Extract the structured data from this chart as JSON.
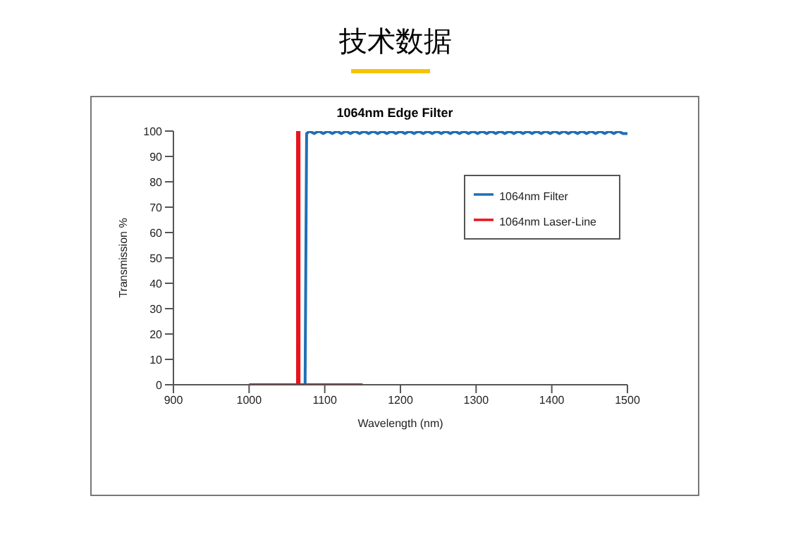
{
  "chart_data": {
    "type": "line",
    "title": "技术数据",
    "subtitle": "1064nm Edge Filter",
    "xlabel": "Wavelength (nm)",
    "ylabel": "Transmission %",
    "xlim": [
      900,
      1500
    ],
    "xticks": [
      900,
      1000,
      1100,
      1200,
      1300,
      1400,
      1500
    ],
    "ylim": [
      0,
      100
    ],
    "yticks": [
      0,
      10,
      20,
      30,
      40,
      50,
      60,
      70,
      80,
      90,
      100
    ],
    "grid": false,
    "legend": "top right",
    "marker": "none",
    "line_style": "solid",
    "series": [
      {
        "name": "1064nm Filter",
        "color": "#1f6fb5",
        "x": [
          1074,
          1076,
          1080,
          1086,
          1092,
          1098,
          1104,
          1110,
          1116,
          1122,
          1128,
          1134,
          1140,
          1146,
          1152,
          1158,
          1164,
          1170,
          1176,
          1182,
          1188,
          1194,
          1200,
          1206,
          1212,
          1218,
          1224,
          1230,
          1236,
          1242,
          1248,
          1254,
          1260,
          1266,
          1272,
          1278,
          1284,
          1290,
          1296,
          1302,
          1308,
          1314,
          1320,
          1326,
          1332,
          1338,
          1344,
          1350,
          1356,
          1362,
          1368,
          1374,
          1380,
          1386,
          1392,
          1398,
          1404,
          1410,
          1416,
          1422,
          1428,
          1434,
          1440,
          1446,
          1452,
          1458,
          1464,
          1470,
          1476,
          1482,
          1488,
          1494,
          1500
        ],
        "values": [
          0,
          99,
          100,
          99,
          100,
          99,
          100,
          99,
          100,
          99,
          100,
          99,
          100,
          99,
          100,
          99,
          100,
          99,
          100,
          99,
          100,
          99,
          100,
          99,
          100,
          99,
          100,
          99,
          100,
          99,
          100,
          99,
          100,
          99,
          100,
          99,
          100,
          99,
          100,
          99,
          100,
          99,
          100,
          99,
          100,
          99,
          100,
          99,
          100,
          99,
          100,
          99,
          100,
          99,
          100,
          99,
          100,
          99,
          100,
          99,
          100,
          99,
          100,
          99,
          100,
          99,
          100,
          99,
          100,
          99,
          100,
          99,
          99
        ]
      },
      {
        "name": "1064nm Laser-Line",
        "color": "#e8141b",
        "x": [
          1000,
          1064,
          1064,
          1066,
          1066,
          1150
        ],
        "values": [
          0,
          0,
          100,
          100,
          0,
          0
        ]
      }
    ]
  }
}
